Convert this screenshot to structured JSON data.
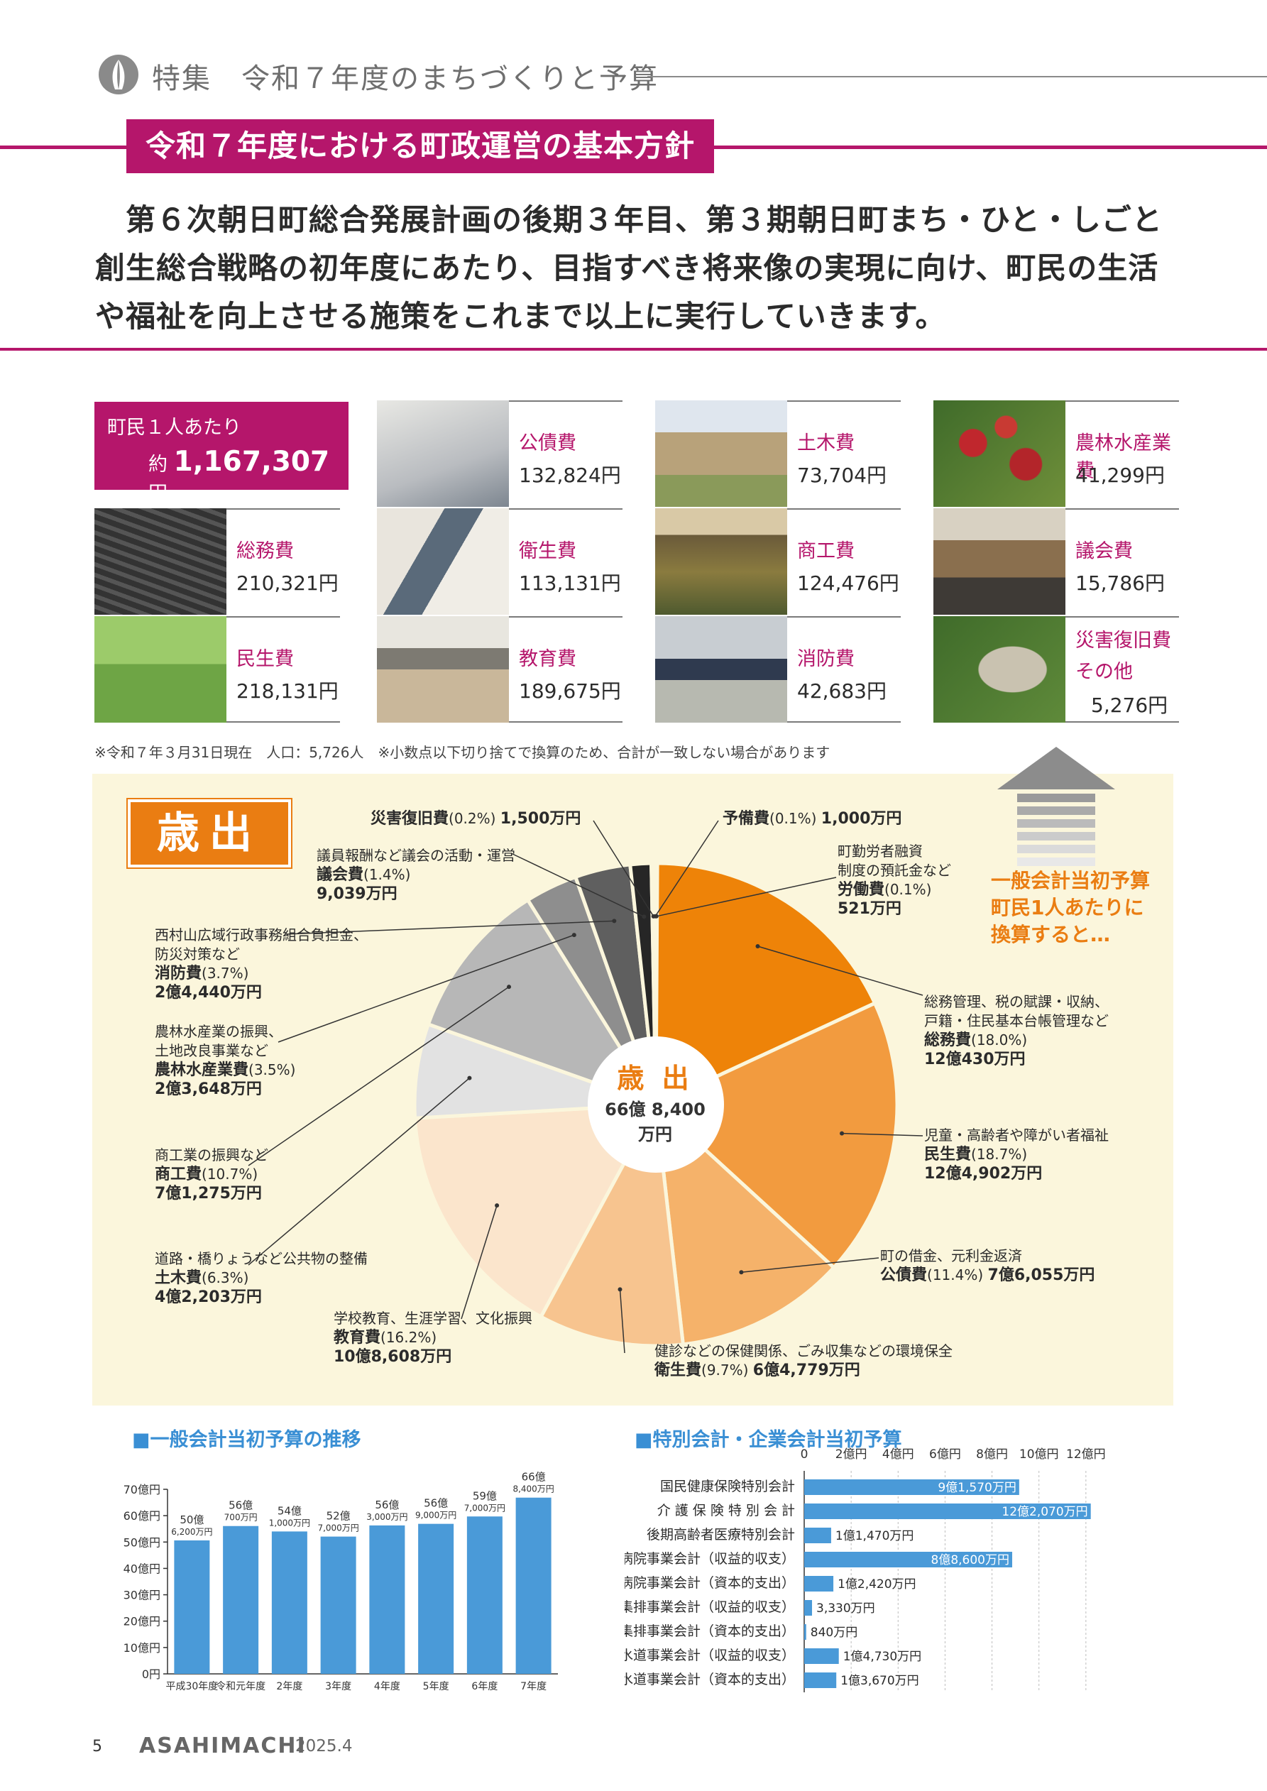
{
  "header": {
    "title": "特集　令和７年度のまちづくりと予算"
  },
  "section": {
    "heading": "令和７年度における町政運営の基本方針",
    "lead": "第６次朝日町総合発展計画の後期３年目、第３期朝日町まち・ひと・しごと創生総合戦略の初年度にあたり、目指すべき将来像の実現に向け、町民の生活や福祉を向上させる施策をこれまで以上に実行していきます。",
    "lead_lines": [
      "　第６次朝日町総合発展計画の後期３年目、第３期朝日町まち・ひと・しごと",
      "創生総合戦略の初年度にあたり、目指すべき将来像の実現に向け、町民の生活",
      "や福祉を向上させる施策をこれまで以上に実行していきます。"
    ]
  },
  "per_person": {
    "label": "町民１人あたり",
    "prefix": "約",
    "value": "1,167,307",
    "unit": "円",
    "items": [
      {
        "name": "公債費",
        "amount": "132,824円",
        "color": "#6a7c8e"
      },
      {
        "name": "土木費",
        "amount": "73,704円",
        "color": "#7a8a55"
      },
      {
        "name": "農林水産業費",
        "amount": "41,299円",
        "color": "#7c2a2a"
      },
      {
        "name": "総務費",
        "amount": "210,321円",
        "color": "#d8dde3"
      },
      {
        "name": "衛生費",
        "amount": "113,131円",
        "color": "#a8b0b8"
      },
      {
        "name": "商工費",
        "amount": "124,476円",
        "color": "#6a6b3a"
      },
      {
        "name": "議会費",
        "amount": "15,786円",
        "color": "#8d7a5a"
      },
      {
        "name": "民生費",
        "amount": "218,131円",
        "color": "#7fa85a"
      },
      {
        "name": "教育費",
        "amount": "189,675円",
        "color": "#9aa3ab"
      },
      {
        "name": "消防費",
        "amount": "42,683円",
        "color": "#6d7a86"
      },
      {
        "name": "災害復旧費",
        "name2": "その他",
        "amount": "5,276円",
        "color": "#5a7a3a"
      }
    ],
    "note": "※令和７年３月31日現在　人口：5,726人　※小数点以下切り捨てで換算のため、合計が一致しない場合があります"
  },
  "expenditure": {
    "tag": "歳出",
    "center_title": "歳 出",
    "center_value": "66億 8,400 万円",
    "arrow_caption": "一般会計当初予算\n町民1人あたりに\n換算すると…",
    "labels": {
      "saigai": {
        "name": "災害復旧費",
        "pct": "(0.2%)",
        "amt": "1,500万円"
      },
      "yobi": {
        "name": "予備費",
        "pct": "(0.1%)",
        "amt": "1,000万円"
      },
      "rodo": {
        "desc": "町勤労者融資\n制度の預託金など",
        "name": "労働費",
        "pct": "(0.1%)",
        "amt": "521万円"
      },
      "somu": {
        "desc": "総務管理、税の賦課・収納、\n戸籍・住民基本台帳管理など",
        "name": "総務費",
        "pct": "(18.0%)",
        "amt": "12億430万円"
      },
      "minsei": {
        "desc": "児童・高齢者や障がい者福祉",
        "name": "民生費",
        "pct": "(18.7%)",
        "amt": "12億4,902万円"
      },
      "kosai": {
        "desc": "町の借金、元利金返済",
        "name": "公債費",
        "pct": "(11.4%)",
        "amt": "7億6,055万円"
      },
      "eisei": {
        "desc": "健診などの保健関係、ごみ収集などの環境保全",
        "name": "衛生費",
        "pct": "(9.7%)",
        "amt": "6億4,779万円"
      },
      "kyoiku": {
        "desc": "学校教育、生涯学習、文化振興",
        "name": "教育費",
        "pct": "(16.2%)",
        "amt": "10億8,608万円"
      },
      "doboku": {
        "desc": "道路・橋りょうなど公共物の整備",
        "name": "土木費",
        "pct": "(6.3%)",
        "amt": "4億2,203万円"
      },
      "shoko": {
        "desc": "商工業の振興など",
        "name": "商工費",
        "pct": "(10.7%)",
        "amt": "7億1,275万円"
      },
      "norin": {
        "desc": "農林水産業の振興、\n土地改良事業など",
        "name": "農林水産業費",
        "pct": "(3.5%)",
        "amt": "2億3,648万円"
      },
      "shobo": {
        "desc": "西村山広域行政事務組合負担金、\n防災対策など",
        "name": "消防費",
        "pct": "(3.7%)",
        "amt": "2億4,440万円"
      },
      "gikai": {
        "desc": "議員報酬など議会の活動・運営",
        "name": "議会費",
        "pct": "(1.4%)",
        "amt": "9,039万円"
      }
    }
  },
  "chart_data": [
    {
      "type": "pie",
      "title": "歳出",
      "total": "66億8,400万円",
      "slices": [
        {
          "name": "労働費",
          "pct": 0.1,
          "color": "#f5c27d"
        },
        {
          "name": "総務費",
          "pct": 18.0,
          "color": "#ee8308"
        },
        {
          "name": "民生費",
          "pct": 18.7,
          "color": "#f29b3f"
        },
        {
          "name": "公債費",
          "pct": 11.4,
          "color": "#f5b26a"
        },
        {
          "name": "衛生費",
          "pct": 9.7,
          "color": "#f7c48f"
        },
        {
          "name": "教育費",
          "pct": 16.2,
          "color": "#fbe5cc"
        },
        {
          "name": "土木費",
          "pct": 6.3,
          "color": "#e2e2e2"
        },
        {
          "name": "商工費",
          "pct": 10.7,
          "color": "#b7b7b7"
        },
        {
          "name": "農林水産業費",
          "pct": 3.5,
          "color": "#8e8e8e"
        },
        {
          "name": "消防費",
          "pct": 3.7,
          "color": "#5f5f5f"
        },
        {
          "name": "議会費",
          "pct": 1.4,
          "color": "#262626"
        },
        {
          "name": "災害復旧費",
          "pct": 0.2,
          "color": "#9a9a9a"
        },
        {
          "name": "予備費",
          "pct": 0.1,
          "color": "#cfcfcf"
        }
      ]
    },
    {
      "type": "bar",
      "title": "■一般会計当初予算の推移",
      "categories": [
        "平成30年度",
        "令和元年度",
        "2年度",
        "3年度",
        "4年度",
        "5年度",
        "6年度",
        "7年度"
      ],
      "values": [
        50.62,
        56.07,
        54.01,
        52.07,
        56.3,
        56.9,
        59.7,
        66.84
      ],
      "data_labels": [
        [
          "50億",
          "6,200万円"
        ],
        [
          "56億",
          "700万円"
        ],
        [
          "54億",
          "1,000万円"
        ],
        [
          "52億",
          "7,000万円"
        ],
        [
          "56億",
          "3,000万円"
        ],
        [
          "56億",
          "9,000万円"
        ],
        [
          "59億",
          "7,000万円"
        ],
        [
          "66億",
          "8,400万円"
        ]
      ],
      "yticks": [
        "0円",
        "10億円",
        "20億円",
        "30億円",
        "40億円",
        "50億円",
        "60億円",
        "70億円"
      ],
      "ylim": [
        0,
        70
      ],
      "color": "#4a9ad8"
    },
    {
      "type": "bar",
      "orientation": "horizontal",
      "title": "■特別会計・企業会計当初予算",
      "categories": [
        "国民健康保険特別会計",
        "介 護 保 険 特 別 会 計",
        "後期高齢者医療特別会計",
        "病院事業会計（収益的収支）",
        "病院事業会計（資本的支出）",
        "集排事業会計（収益的収支）",
        "集排事業会計（資本的支出）",
        "水道事業会計（収益的収支）",
        "水道事業会計（資本的支出）"
      ],
      "values": [
        9.157,
        12.207,
        1.147,
        8.86,
        1.242,
        0.333,
        0.084,
        1.473,
        1.367
      ],
      "data_labels": [
        "9億1,570万円",
        "12億2,070万円",
        "1億1,470万円",
        "8億8,600万円",
        "1億2,420万円",
        "3,330万円",
        "840万円",
        "1億4,730万円",
        "1億3,670万円"
      ],
      "label_inside": [
        true,
        true,
        false,
        true,
        false,
        false,
        false,
        false,
        false
      ],
      "xticks": [
        "0",
        "2億円",
        "4億円",
        "6億円",
        "8億円",
        "10億円",
        "12億円"
      ],
      "xlim": [
        0,
        14
      ],
      "color": "#4a9ad8"
    }
  ],
  "footer": {
    "page": "5",
    "brand": "ASAHIMACHI",
    "date": "2025.4"
  }
}
